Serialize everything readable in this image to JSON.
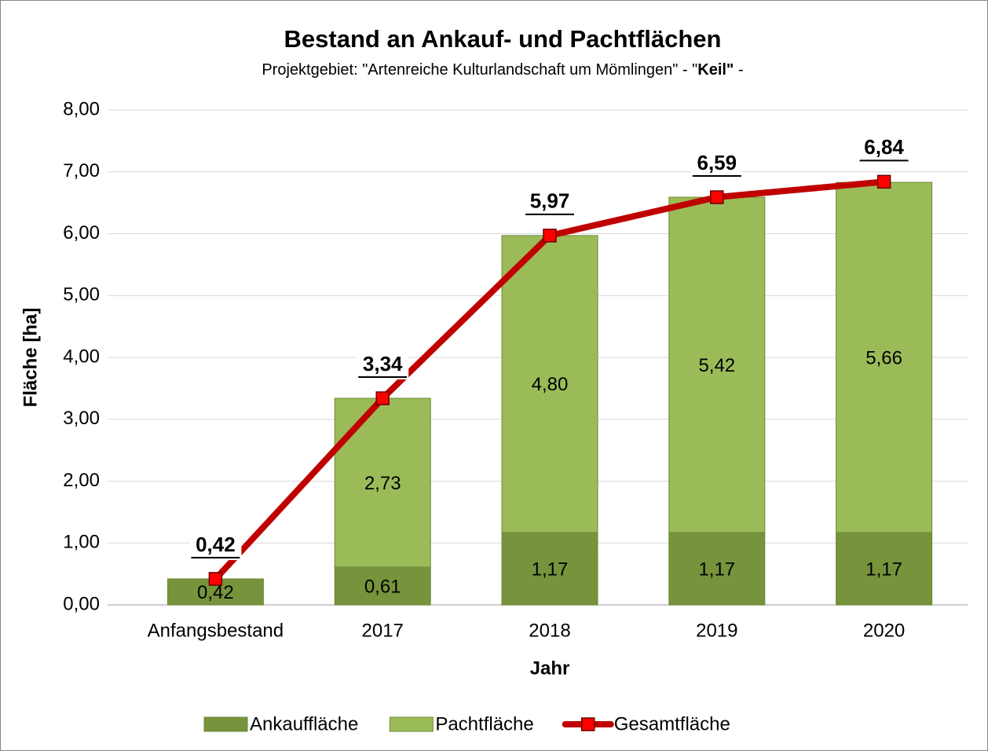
{
  "chart_data": {
    "type": "bar",
    "stacked": true,
    "title": "Bestand an Ankauf- und Pachtflächen",
    "subtitle": [
      "Projektgebiet: \"Artenreiche Kulturlandschaft um Mömlingen\" - \"",
      "Keil\"",
      " -"
    ],
    "x_label": "Jahr",
    "y_label": "Fläche [ha]",
    "categories": [
      "Anfangsbestand",
      "2017",
      "2018",
      "2019",
      "2020"
    ],
    "ylim": [
      0,
      8
    ],
    "yticks": [
      {
        "value": 0,
        "label": "0,00"
      },
      {
        "value": 1,
        "label": "1,00"
      },
      {
        "value": 2,
        "label": "2,00"
      },
      {
        "value": 3,
        "label": "3,00"
      },
      {
        "value": 4,
        "label": "4,00"
      },
      {
        "value": 5,
        "label": "5,00"
      },
      {
        "value": 6,
        "label": "6,00"
      },
      {
        "value": 7,
        "label": "7,00"
      },
      {
        "value": 8,
        "label": "8,00"
      }
    ],
    "grid": true,
    "legend": "bottom",
    "series": [
      {
        "name": "Ankauffläche",
        "type": "bar",
        "color": "#77933c",
        "values": [
          0.42,
          0.61,
          1.17,
          1.17,
          1.17
        ],
        "value_labels": [
          "0,42",
          "0,61",
          "1,17",
          "1,17",
          "1,17"
        ]
      },
      {
        "name": "Pachtfläche",
        "type": "bar",
        "color": "#9bbb59",
        "values": [
          null,
          2.73,
          4.8,
          5.42,
          5.66
        ],
        "value_labels": [
          null,
          "2,73",
          "4,80",
          "5,42",
          "5,66"
        ]
      },
      {
        "name": "Gesamtfläche",
        "type": "line",
        "color": "#c00000",
        "marker_color": "#ff0000",
        "values": [
          0.42,
          3.34,
          5.97,
          6.59,
          6.84
        ],
        "value_labels": [
          "0,42",
          "3,34",
          "5,97",
          "6,59",
          "6,84"
        ]
      }
    ]
  }
}
